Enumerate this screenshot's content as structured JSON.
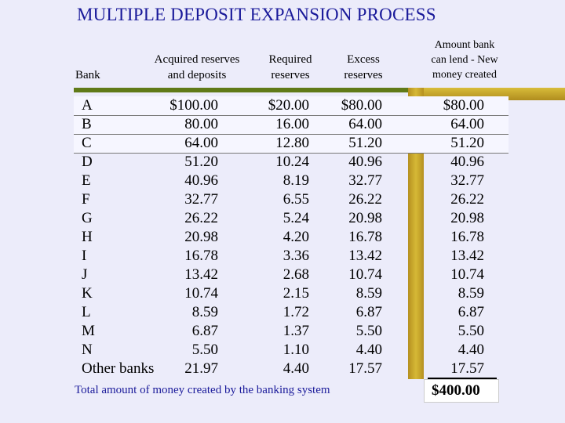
{
  "title": "MULTIPLE DEPOSIT EXPANSION PROCESS",
  "headers": {
    "bank": "Bank",
    "acquired_line1": "Acquired reserves",
    "acquired_line2": "and deposits",
    "required_line1": "Required",
    "required_line2": "reserves",
    "excess_line1": "Excess",
    "excess_line2": "reserves",
    "lend_line1": "Amount bank",
    "lend_line2": "can lend - New",
    "lend_line3": "money created"
  },
  "rows": [
    {
      "bank": "A",
      "acquired": "$100.00",
      "required": "$20.00",
      "excess": "$80.00",
      "lend": "$80.00"
    },
    {
      "bank": "B",
      "acquired": "80.00",
      "required": "16.00",
      "excess": "64.00",
      "lend": "64.00"
    },
    {
      "bank": "C",
      "acquired": "64.00",
      "required": "12.80",
      "excess": "51.20",
      "lend": "51.20"
    },
    {
      "bank": "D",
      "acquired": "51.20",
      "required": "10.24",
      "excess": "40.96",
      "lend": "40.96"
    },
    {
      "bank": "E",
      "acquired": "40.96",
      "required": "8.19",
      "excess": "32.77",
      "lend": "32.77"
    },
    {
      "bank": "F",
      "acquired": "32.77",
      "required": "6.55",
      "excess": "26.22",
      "lend": "26.22"
    },
    {
      "bank": "G",
      "acquired": "26.22",
      "required": "5.24",
      "excess": "20.98",
      "lend": "20.98"
    },
    {
      "bank": "H",
      "acquired": "20.98",
      "required": "4.20",
      "excess": "16.78",
      "lend": "16.78"
    },
    {
      "bank": "I",
      "acquired": "16.78",
      "required": "3.36",
      "excess": "13.42",
      "lend": "13.42"
    },
    {
      "bank": "J",
      "acquired": "13.42",
      "required": "2.68",
      "excess": "10.74",
      "lend": "10.74"
    },
    {
      "bank": "K",
      "acquired": "10.74",
      "required": "2.15",
      "excess": "8.59",
      "lend": "8.59"
    },
    {
      "bank": "L",
      "acquired": "8.59",
      "required": "1.72",
      "excess": "6.87",
      "lend": "6.87"
    },
    {
      "bank": "M",
      "acquired": "6.87",
      "required": "1.37",
      "excess": "5.50",
      "lend": "5.50"
    },
    {
      "bank": "N",
      "acquired": "5.50",
      "required": "1.10",
      "excess": "4.40",
      "lend": "4.40"
    },
    {
      "bank": "Other banks",
      "acquired": "21.97",
      "required": "4.40",
      "excess": "17.57",
      "lend": "17.57"
    }
  ],
  "total": {
    "label": "Total amount of money created by the banking system",
    "value": "$400.00"
  },
  "colors": {
    "title": "#1a1a9a",
    "background": "#ececfa",
    "accent_green": "#607a18",
    "accent_gold": "#c9a62c"
  }
}
